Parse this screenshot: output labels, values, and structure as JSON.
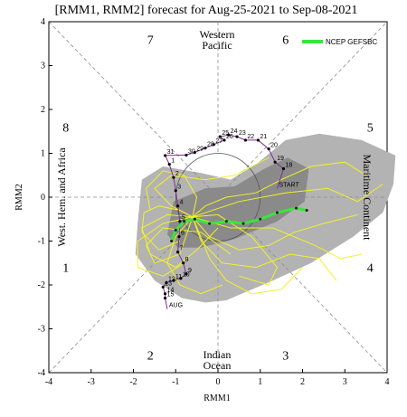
{
  "chart_data": {
    "type": "line",
    "title": "[RMM1, RMM2] forecast for Aug-25-2021 to Sep-08-2021",
    "xlabel": "RMM1",
    "ylabel": "RMM2",
    "xlim": [
      -4,
      4
    ],
    "ylim": [
      -4,
      4
    ],
    "xticks": [
      "-4",
      "-3",
      "-2",
      "-1",
      "0",
      "1",
      "2",
      "3",
      "4"
    ],
    "yticks": [
      "-4",
      "-3",
      "-2",
      "-1",
      "0",
      "1",
      "2",
      "3",
      "4"
    ],
    "phases": [
      {
        "label": "1",
        "x": -3.6,
        "y": -1.6
      },
      {
        "label": "2",
        "x": -1.6,
        "y": -3.6
      },
      {
        "label": "3",
        "x": 1.6,
        "y": -3.6
      },
      {
        "label": "4",
        "x": 3.6,
        "y": -1.6
      },
      {
        "label": "5",
        "x": 3.6,
        "y": 1.6
      },
      {
        "label": "6",
        "x": 1.6,
        "y": 3.6
      },
      {
        "label": "7",
        "x": -1.6,
        "y": 3.6
      },
      {
        "label": "8",
        "x": -3.6,
        "y": 1.6
      }
    ],
    "regions": {
      "top": [
        "Western",
        "Pacific"
      ],
      "bottom": [
        "Indian",
        "Ocean"
      ],
      "left": "West. Hem. and Africa",
      "right": "Maritime Continent"
    },
    "legend": {
      "label": "NCEP GEFSBC",
      "color": "#39e639",
      "placement": "top-right"
    },
    "shading": {
      "outer": [
        [
          -1.9,
          -0.6
        ],
        [
          -1.8,
          0.4
        ],
        [
          -1.3,
          0.7
        ],
        [
          -0.4,
          0.55
        ],
        [
          0.3,
          0.4
        ],
        [
          0.9,
          0.75
        ],
        [
          1.6,
          1.3
        ],
        [
          2.4,
          1.45
        ],
        [
          3.4,
          1.3
        ],
        [
          4.2,
          0.95
        ],
        [
          4.15,
          0.3
        ],
        [
          3.9,
          -0.35
        ],
        [
          3.2,
          -0.9
        ],
        [
          2.2,
          -1.5
        ],
        [
          1.3,
          -1.9
        ],
        [
          0.2,
          -2.35
        ],
        [
          -0.3,
          -2.4
        ],
        [
          -0.85,
          -2.3
        ],
        [
          -1.5,
          -1.9
        ],
        [
          -1.95,
          -1.3
        ]
      ],
      "inner": [
        [
          -1.2,
          -0.85
        ],
        [
          -1.05,
          -0.1
        ],
        [
          -0.3,
          0.2
        ],
        [
          0.4,
          0.25
        ],
        [
          1.1,
          0.65
        ],
        [
          1.65,
          0.9
        ],
        [
          2.15,
          0.65
        ],
        [
          2.05,
          -0.1
        ],
        [
          1.4,
          -0.55
        ],
        [
          0.4,
          -0.95
        ],
        [
          -0.4,
          -1.15
        ],
        [
          -0.95,
          -1.15
        ]
      ]
    },
    "observed": [
      {
        "label": "START",
        "x": 1.4,
        "y": 0.2
      },
      {
        "label": "18",
        "x": 1.55,
        "y": 0.65
      },
      {
        "label": "19",
        "x": 1.35,
        "y": 0.8
      },
      {
        "label": "20",
        "x": 1.2,
        "y": 1.1
      },
      {
        "label": "21",
        "x": 0.95,
        "y": 1.3
      },
      {
        "label": "22",
        "x": 0.65,
        "y": 1.3
      },
      {
        "label": "23",
        "x": 0.45,
        "y": 1.38
      },
      {
        "label": "24",
        "x": 0.25,
        "y": 1.42
      },
      {
        "label": "25",
        "x": 0.05,
        "y": 1.38
      },
      {
        "label": "26",
        "x": 0.15,
        "y": 1.3
      },
      {
        "label": "27",
        "x": -0.1,
        "y": 1.2
      },
      {
        "label": "28",
        "x": -0.3,
        "y": 1.12
      },
      {
        "label": "29",
        "x": -0.55,
        "y": 1.02
      },
      {
        "label": "30",
        "x": -0.75,
        "y": 0.96
      },
      {
        "label": "31",
        "x": -1.25,
        "y": 0.95
      },
      {
        "label": "1",
        "x": -1.15,
        "y": 0.75
      },
      {
        "label": "2",
        "x": -1.05,
        "y": 0.45
      },
      {
        "label": "3",
        "x": -1.0,
        "y": 0.15
      },
      {
        "label": "4",
        "x": -0.95,
        "y": -0.2
      },
      {
        "label": "5",
        "x": -0.9,
        "y": -0.55
      },
      {
        "label": "6",
        "x": -0.92,
        "y": -0.9
      },
      {
        "label": "7",
        "x": -0.95,
        "y": -1.25
      },
      {
        "label": "8",
        "x": -0.82,
        "y": -1.5
      },
      {
        "label": "9",
        "x": -0.75,
        "y": -1.75
      },
      {
        "label": "10",
        "x": -0.88,
        "y": -1.85
      },
      {
        "label": "11",
        "x": -1.05,
        "y": -1.9
      },
      {
        "label": "12",
        "x": -1.22,
        "y": -1.95
      },
      {
        "label": "13",
        "x": -1.3,
        "y": -2.05
      },
      {
        "label": "14",
        "x": -1.25,
        "y": -2.2
      },
      {
        "label": "15",
        "x": -1.25,
        "y": -2.3
      },
      {
        "label": "AUG",
        "x": -1.2,
        "y": -2.55
      }
    ],
    "ensemble_mean": [
      [
        -0.55,
        -0.5
      ],
      [
        -0.2,
        -0.6
      ],
      [
        0.2,
        -0.55
      ],
      [
        0.6,
        -0.6
      ],
      [
        1.0,
        -0.5
      ],
      [
        1.4,
        -0.35
      ],
      [
        1.85,
        -0.25
      ],
      [
        2.1,
        -0.3
      ]
    ],
    "ensemble_mean_2": [
      [
        -0.55,
        -0.5
      ],
      [
        -0.8,
        -0.55
      ],
      [
        -1.0,
        -0.75
      ],
      [
        -1.1,
        -1.0
      ]
    ],
    "members": [
      [
        [
          -0.6,
          -0.45
        ],
        [
          -0.9,
          -0.3
        ],
        [
          -1.4,
          -0.2
        ],
        [
          -1.75,
          -0.35
        ],
        [
          -1.8,
          -0.8
        ],
        [
          -1.4,
          -1.2
        ],
        [
          -0.9,
          -1.0
        ]
      ],
      [
        [
          -0.6,
          -0.45
        ],
        [
          -0.3,
          -0.2
        ],
        [
          0.2,
          0.0
        ],
        [
          0.9,
          0.1
        ],
        [
          1.5,
          0.4
        ],
        [
          2.2,
          0.7
        ],
        [
          3.0,
          0.8
        ],
        [
          3.5,
          0.5
        ]
      ],
      [
        [
          -0.6,
          -0.45
        ],
        [
          -0.2,
          -0.9
        ],
        [
          0.5,
          -1.2
        ],
        [
          1.2,
          -1.1
        ],
        [
          1.8,
          -0.8
        ],
        [
          2.5,
          -0.6
        ],
        [
          3.3,
          -0.4
        ]
      ],
      [
        [
          -0.6,
          -0.45
        ],
        [
          -1.0,
          -0.9
        ],
        [
          -1.2,
          -1.5
        ],
        [
          -0.9,
          -2.0
        ],
        [
          -0.4,
          -2.2
        ],
        [
          0.1,
          -2.0
        ]
      ],
      [
        [
          -0.6,
          -0.45
        ],
        [
          -1.3,
          -0.6
        ],
        [
          -1.9,
          -1.0
        ],
        [
          -1.9,
          -1.6
        ],
        [
          -1.3,
          -1.8
        ],
        [
          -0.8,
          -1.5
        ]
      ],
      [
        [
          -0.6,
          -0.45
        ],
        [
          -0.5,
          0.0
        ],
        [
          -0.8,
          0.5
        ],
        [
          -1.3,
          0.6
        ],
        [
          -1.7,
          0.2
        ],
        [
          -1.6,
          -0.3
        ]
      ],
      [
        [
          -0.6,
          -0.45
        ],
        [
          0.0,
          -0.4
        ],
        [
          0.8,
          -0.9
        ],
        [
          1.4,
          -1.6
        ],
        [
          1.2,
          -2.0
        ],
        [
          0.5,
          -1.8
        ]
      ],
      [
        [
          -0.6,
          -0.45
        ],
        [
          0.3,
          -0.7
        ],
        [
          1.3,
          -0.7
        ],
        [
          2.3,
          -1.1
        ],
        [
          2.9,
          -1.4
        ],
        [
          3.4,
          -1.3
        ]
      ],
      [
        [
          -0.6,
          -0.45
        ],
        [
          -1.1,
          -0.2
        ],
        [
          -1.5,
          0.2
        ],
        [
          -1.1,
          0.5
        ],
        [
          -0.3,
          0.4
        ],
        [
          0.4,
          0.5
        ],
        [
          1.2,
          0.9
        ]
      ],
      [
        [
          -0.6,
          -0.45
        ],
        [
          -0.2,
          -1.4
        ],
        [
          0.2,
          -1.9
        ],
        [
          0.8,
          -2.2
        ],
        [
          1.5,
          -2.1
        ],
        [
          2.0,
          -1.6
        ]
      ],
      [
        [
          -0.6,
          -0.45
        ],
        [
          -0.9,
          -1.3
        ],
        [
          -1.5,
          -1.5
        ],
        [
          -1.7,
          -1.1
        ],
        [
          -1.3,
          -0.7
        ],
        [
          -0.4,
          -0.8
        ],
        [
          0.3,
          -1.3
        ]
      ],
      [
        [
          -0.6,
          -0.45
        ],
        [
          0.5,
          -0.1
        ],
        [
          1.6,
          0.1
        ],
        [
          2.6,
          0.2
        ],
        [
          3.3,
          -0.1
        ],
        [
          3.9,
          0.3
        ]
      ],
      [
        [
          -0.6,
          -0.45
        ],
        [
          -0.4,
          -1.0
        ],
        [
          0.1,
          -1.5
        ],
        [
          0.9,
          -1.6
        ],
        [
          1.7,
          -1.3
        ],
        [
          2.4,
          -1.4
        ],
        [
          2.8,
          -1.9
        ]
      ],
      [
        [
          -0.6,
          -0.45
        ],
        [
          -1.2,
          -0.4
        ],
        [
          -1.8,
          -0.7
        ],
        [
          -1.6,
          -1.3
        ],
        [
          -1.0,
          -1.6
        ],
        [
          -0.5,
          -1.2
        ],
        [
          0.0,
          -0.7
        ]
      ]
    ]
  }
}
